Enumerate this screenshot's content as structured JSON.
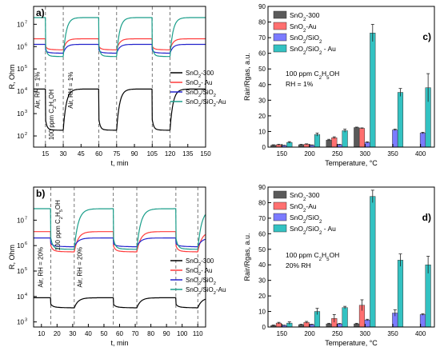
{
  "chart_data": [
    {
      "panel": "a)",
      "type": "line",
      "xlabel": "t, min",
      "ylabel": "R, Ohm",
      "xlim": [
        5,
        150
      ],
      "ylog": true,
      "ylim_exp": [
        1.5,
        7.8
      ],
      "xticks": [
        15,
        30,
        45,
        60,
        75,
        90,
        105,
        120,
        135,
        150
      ],
      "yticks": [
        {
          "exp": 2,
          "label": "10"
        },
        {
          "exp": 3,
          "label": "10"
        },
        {
          "exp": 4,
          "label": "10"
        },
        {
          "exp": 5,
          "label": "10"
        },
        {
          "exp": 6,
          "label": "10"
        },
        {
          "exp": 7,
          "label": "10"
        }
      ],
      "dashed_x": [
        15,
        30,
        60,
        75,
        105,
        120
      ],
      "annotations": [
        {
          "text": "Air, RH = 1%",
          "x": 10,
          "y": 4.05
        },
        {
          "text": "100 ppm C2H5OH",
          "x": 22,
          "y": 2.95
        },
        {
          "text": "Air, RH = 1%",
          "x": 38,
          "y": 4.05
        }
      ],
      "exposure_windows": [
        [
          15,
          30
        ],
        [
          60,
          75
        ],
        [
          105,
          120
        ]
      ],
      "series": [
        {
          "name": "SnO2-300",
          "color": "#000000",
          "air": 4.1,
          "gas": 2.25
        },
        {
          "name": "SnO2- Au",
          "color": "#ff3b3b",
          "air": 6.35,
          "gas": 5.85
        },
        {
          "name": "SnO2/SiO2",
          "color": "#2222cc",
          "air": 6.1,
          "gas": 5.7
        },
        {
          "name": "SnO2/SiO2-Au",
          "color": "#1a9e8a",
          "air": 7.3,
          "gas": 5.55
        }
      ],
      "legend_labels": [
        "SnO2-300",
        "SnO2- Au",
        "SnO2/SiO2",
        "SnO2/SiO2-Au"
      ]
    },
    {
      "panel": "b)",
      "type": "line",
      "xlabel": "t, min",
      "ylabel": "R, Ohm",
      "xlim": [
        5,
        115
      ],
      "ylog": true,
      "ylim_exp": [
        2.8,
        8.3
      ],
      "xticks": [
        10,
        20,
        30,
        40,
        50,
        60,
        70,
        80,
        90,
        100,
        110
      ],
      "yticks": [
        {
          "exp": 3,
          "label": "10"
        },
        {
          "exp": 4,
          "label": "10"
        },
        {
          "exp": 5,
          "label": "10"
        },
        {
          "exp": 6,
          "label": "10"
        },
        {
          "exp": 7,
          "label": "10"
        }
      ],
      "dashed_x": [
        16,
        31,
        56,
        71,
        96,
        110
      ],
      "annotations": [
        {
          "text": "Air, RH = 20%",
          "x": 11,
          "y": 5.15
        },
        {
          "text": "100 ppm C2H5OH",
          "x": 22,
          "y": 6.8
        },
        {
          "text": "Air, RH = 20%",
          "x": 36,
          "y": 5.15
        }
      ],
      "exposure_windows": [
        [
          16,
          31
        ],
        [
          56,
          71
        ],
        [
          96,
          110
        ]
      ],
      "series": [
        {
          "name": "SnO2-300",
          "color": "#000000",
          "air": 3.95,
          "gas": 3.55
        },
        {
          "name": "SnO2- Au",
          "color": "#ff3b3b",
          "air": 6.55,
          "gas": 5.75
        },
        {
          "name": "SnO2/SiO2",
          "color": "#2222cc",
          "air": 6.3,
          "gas": 5.95
        },
        {
          "name": "SnO2/SiO2-Au",
          "color": "#1a9e8a",
          "air": 7.45,
          "gas": 5.85
        }
      ],
      "legend_labels": [
        "SnO2-300",
        "SnO2- Au",
        "SnO2/SiO2",
        "SnO2/SiO2-Au"
      ]
    },
    {
      "panel": "c)",
      "type": "bar",
      "xlabel": "Temperature, °C",
      "ylabel": "Rair/Rgas, a.u.",
      "ylim": [
        0,
        90
      ],
      "yticks": [
        0,
        10,
        20,
        30,
        40,
        50,
        60,
        70,
        80,
        90
      ],
      "categories": [
        "150",
        "200",
        "250",
        "300",
        "350",
        "400"
      ],
      "text_lines": [
        "100 ppm C2H5OH",
        "RH = 1%"
      ],
      "series": [
        {
          "name": "SnO2-300",
          "color": "#5a5a5a",
          "values": [
            1.2,
            1.5,
            4.5,
            12.5,
            null,
            null
          ],
          "errors": [
            0.3,
            0.3,
            0.5,
            0.3,
            null,
            null
          ]
        },
        {
          "name": "SnO2-Au",
          "color": "#ff7070",
          "values": [
            1.5,
            1.8,
            6.0,
            12.0,
            null,
            null
          ],
          "errors": [
            0.3,
            0.3,
            0.6,
            0.3,
            null,
            null
          ]
        },
        {
          "name": "SnO2/SiO2",
          "color": "#7b7bff",
          "values": [
            1.0,
            1.2,
            1.5,
            3.0,
            11.0,
            9.0
          ],
          "errors": [
            0.2,
            0.2,
            0.3,
            0.4,
            0.5,
            0.5
          ]
        },
        {
          "name": "SnO2/SiO2 - Au",
          "color": "#33c2c2",
          "values": [
            3.0,
            8.0,
            10.5,
            73.0,
            35.0,
            38.0
          ],
          "errors": [
            0.5,
            1.0,
            1.0,
            5.5,
            2.5,
            9.0
          ]
        }
      ],
      "legend_labels": [
        "SnO2-300",
        "SnO2-Au",
        "SnO2/SiO2",
        "SnO2/SiO2 - Au"
      ]
    },
    {
      "panel": "d)",
      "type": "bar",
      "xlabel": "Temperature, °C",
      "ylabel": "Rair/Rgas, a.u.",
      "ylim": [
        0,
        90
      ],
      "yticks": [
        0,
        10,
        20,
        30,
        40,
        50,
        60,
        70,
        80,
        90
      ],
      "categories": [
        "150",
        "200",
        "250",
        "300",
        "350",
        "400"
      ],
      "text_lines": [
        "100 ppm C2H5OH",
        "20% RH"
      ],
      "series": [
        {
          "name": "SnO2-300",
          "color": "#5a5a5a",
          "values": [
            1.0,
            1.5,
            2.0,
            2.0,
            null,
            null
          ],
          "errors": [
            0.3,
            0.3,
            0.4,
            0.4,
            null,
            null
          ]
        },
        {
          "name": "SnO2-Au",
          "color": "#ff7070",
          "values": [
            2.5,
            3.0,
            5.5,
            14.0,
            null,
            null
          ],
          "errors": [
            0.5,
            0.6,
            2.5,
            3.5,
            null,
            null
          ]
        },
        {
          "name": "SnO2/SiO2",
          "color": "#7b7bff",
          "values": [
            1.0,
            1.5,
            2.0,
            4.5,
            9.0,
            8.0
          ],
          "errors": [
            0.2,
            0.3,
            0.3,
            0.5,
            2.0,
            0.5
          ]
        },
        {
          "name": "SnO2/SiO2 - Au",
          "color": "#33c2c2",
          "values": [
            2.5,
            10.0,
            12.5,
            84.0,
            43.0,
            40.0
          ],
          "errors": [
            0.8,
            2.0,
            0.8,
            4.0,
            4.0,
            5.5
          ]
        }
      ],
      "legend_labels": [
        "SnO2-300",
        "SnO2-Au",
        "SnO2/SiO2",
        "SnO2/SiO2 - Au"
      ]
    }
  ]
}
